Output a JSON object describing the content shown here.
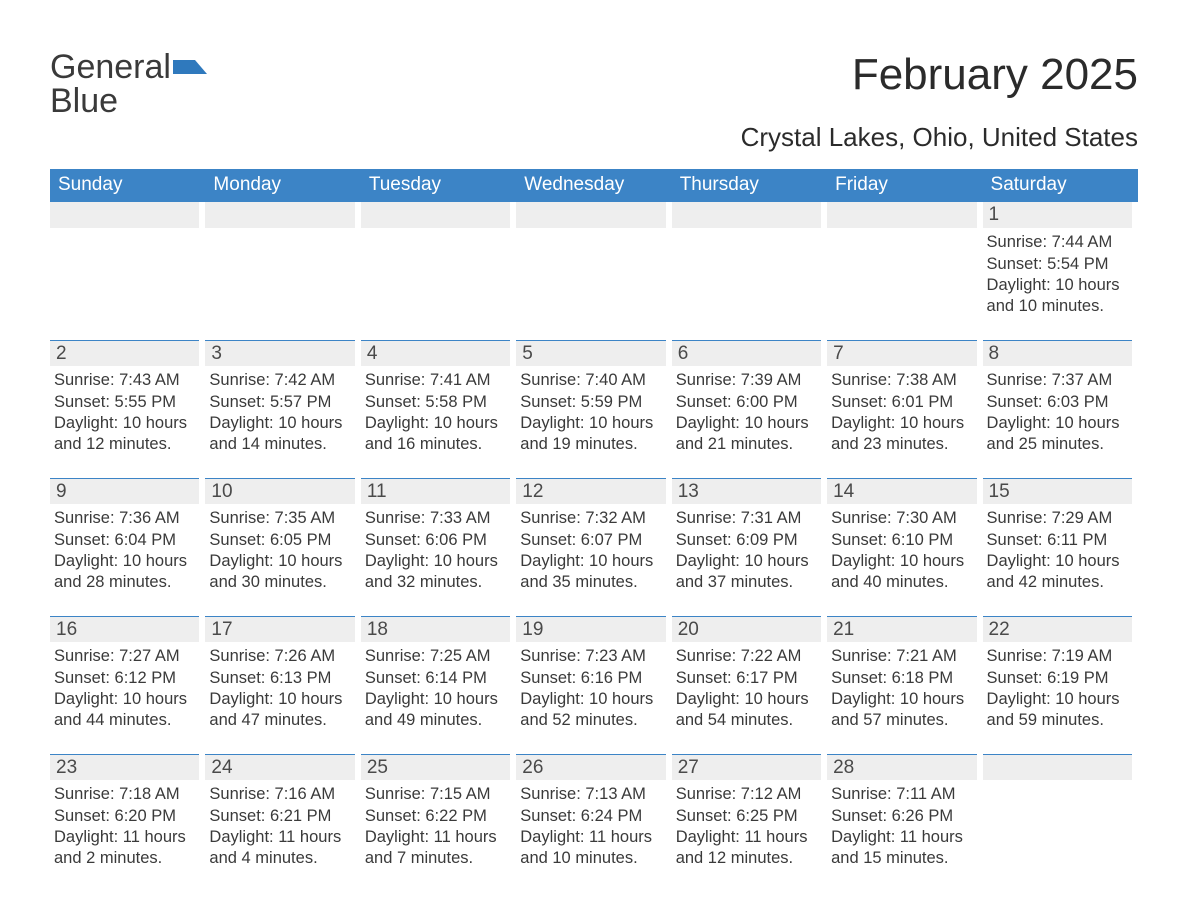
{
  "logo": {
    "word1": "General",
    "word2": "Blue",
    "flag_color": "#2f79bd"
  },
  "title": "February 2025",
  "location": "Crystal Lakes, Ohio, United States",
  "colors": {
    "header_bg": "#3c84c6",
    "header_text": "#ffffff",
    "row_accent": "#3c84c6",
    "daynum_bg": "#eeeeee",
    "body_text": "#3a3a3a",
    "title_text": "#2b2b2b",
    "logo_gray": "#3a3a3a",
    "logo_blue": "#2b7bbf"
  },
  "weekdays": [
    "Sunday",
    "Monday",
    "Tuesday",
    "Wednesday",
    "Thursday",
    "Friday",
    "Saturday"
  ],
  "weeks": [
    [
      {
        "n": "",
        "sunrise": "",
        "sunset": "",
        "daylight": ""
      },
      {
        "n": "",
        "sunrise": "",
        "sunset": "",
        "daylight": ""
      },
      {
        "n": "",
        "sunrise": "",
        "sunset": "",
        "daylight": ""
      },
      {
        "n": "",
        "sunrise": "",
        "sunset": "",
        "daylight": ""
      },
      {
        "n": "",
        "sunrise": "",
        "sunset": "",
        "daylight": ""
      },
      {
        "n": "",
        "sunrise": "",
        "sunset": "",
        "daylight": ""
      },
      {
        "n": "1",
        "sunrise": "Sunrise: 7:44 AM",
        "sunset": "Sunset: 5:54 PM",
        "daylight": "Daylight: 10 hours and 10 minutes."
      }
    ],
    [
      {
        "n": "2",
        "sunrise": "Sunrise: 7:43 AM",
        "sunset": "Sunset: 5:55 PM",
        "daylight": "Daylight: 10 hours and 12 minutes."
      },
      {
        "n": "3",
        "sunrise": "Sunrise: 7:42 AM",
        "sunset": "Sunset: 5:57 PM",
        "daylight": "Daylight: 10 hours and 14 minutes."
      },
      {
        "n": "4",
        "sunrise": "Sunrise: 7:41 AM",
        "sunset": "Sunset: 5:58 PM",
        "daylight": "Daylight: 10 hours and 16 minutes."
      },
      {
        "n": "5",
        "sunrise": "Sunrise: 7:40 AM",
        "sunset": "Sunset: 5:59 PM",
        "daylight": "Daylight: 10 hours and 19 minutes."
      },
      {
        "n": "6",
        "sunrise": "Sunrise: 7:39 AM",
        "sunset": "Sunset: 6:00 PM",
        "daylight": "Daylight: 10 hours and 21 minutes."
      },
      {
        "n": "7",
        "sunrise": "Sunrise: 7:38 AM",
        "sunset": "Sunset: 6:01 PM",
        "daylight": "Daylight: 10 hours and 23 minutes."
      },
      {
        "n": "8",
        "sunrise": "Sunrise: 7:37 AM",
        "sunset": "Sunset: 6:03 PM",
        "daylight": "Daylight: 10 hours and 25 minutes."
      }
    ],
    [
      {
        "n": "9",
        "sunrise": "Sunrise: 7:36 AM",
        "sunset": "Sunset: 6:04 PM",
        "daylight": "Daylight: 10 hours and 28 minutes."
      },
      {
        "n": "10",
        "sunrise": "Sunrise: 7:35 AM",
        "sunset": "Sunset: 6:05 PM",
        "daylight": "Daylight: 10 hours and 30 minutes."
      },
      {
        "n": "11",
        "sunrise": "Sunrise: 7:33 AM",
        "sunset": "Sunset: 6:06 PM",
        "daylight": "Daylight: 10 hours and 32 minutes."
      },
      {
        "n": "12",
        "sunrise": "Sunrise: 7:32 AM",
        "sunset": "Sunset: 6:07 PM",
        "daylight": "Daylight: 10 hours and 35 minutes."
      },
      {
        "n": "13",
        "sunrise": "Sunrise: 7:31 AM",
        "sunset": "Sunset: 6:09 PM",
        "daylight": "Daylight: 10 hours and 37 minutes."
      },
      {
        "n": "14",
        "sunrise": "Sunrise: 7:30 AM",
        "sunset": "Sunset: 6:10 PM",
        "daylight": "Daylight: 10 hours and 40 minutes."
      },
      {
        "n": "15",
        "sunrise": "Sunrise: 7:29 AM",
        "sunset": "Sunset: 6:11 PM",
        "daylight": "Daylight: 10 hours and 42 minutes."
      }
    ],
    [
      {
        "n": "16",
        "sunrise": "Sunrise: 7:27 AM",
        "sunset": "Sunset: 6:12 PM",
        "daylight": "Daylight: 10 hours and 44 minutes."
      },
      {
        "n": "17",
        "sunrise": "Sunrise: 7:26 AM",
        "sunset": "Sunset: 6:13 PM",
        "daylight": "Daylight: 10 hours and 47 minutes."
      },
      {
        "n": "18",
        "sunrise": "Sunrise: 7:25 AM",
        "sunset": "Sunset: 6:14 PM",
        "daylight": "Daylight: 10 hours and 49 minutes."
      },
      {
        "n": "19",
        "sunrise": "Sunrise: 7:23 AM",
        "sunset": "Sunset: 6:16 PM",
        "daylight": "Daylight: 10 hours and 52 minutes."
      },
      {
        "n": "20",
        "sunrise": "Sunrise: 7:22 AM",
        "sunset": "Sunset: 6:17 PM",
        "daylight": "Daylight: 10 hours and 54 minutes."
      },
      {
        "n": "21",
        "sunrise": "Sunrise: 7:21 AM",
        "sunset": "Sunset: 6:18 PM",
        "daylight": "Daylight: 10 hours and 57 minutes."
      },
      {
        "n": "22",
        "sunrise": "Sunrise: 7:19 AM",
        "sunset": "Sunset: 6:19 PM",
        "daylight": "Daylight: 10 hours and 59 minutes."
      }
    ],
    [
      {
        "n": "23",
        "sunrise": "Sunrise: 7:18 AM",
        "sunset": "Sunset: 6:20 PM",
        "daylight": "Daylight: 11 hours and 2 minutes."
      },
      {
        "n": "24",
        "sunrise": "Sunrise: 7:16 AM",
        "sunset": "Sunset: 6:21 PM",
        "daylight": "Daylight: 11 hours and 4 minutes."
      },
      {
        "n": "25",
        "sunrise": "Sunrise: 7:15 AM",
        "sunset": "Sunset: 6:22 PM",
        "daylight": "Daylight: 11 hours and 7 minutes."
      },
      {
        "n": "26",
        "sunrise": "Sunrise: 7:13 AM",
        "sunset": "Sunset: 6:24 PM",
        "daylight": "Daylight: 11 hours and 10 minutes."
      },
      {
        "n": "27",
        "sunrise": "Sunrise: 7:12 AM",
        "sunset": "Sunset: 6:25 PM",
        "daylight": "Daylight: 11 hours and 12 minutes."
      },
      {
        "n": "28",
        "sunrise": "Sunrise: 7:11 AM",
        "sunset": "Sunset: 6:26 PM",
        "daylight": "Daylight: 11 hours and 15 minutes."
      },
      {
        "n": "",
        "sunrise": "",
        "sunset": "",
        "daylight": ""
      }
    ]
  ]
}
